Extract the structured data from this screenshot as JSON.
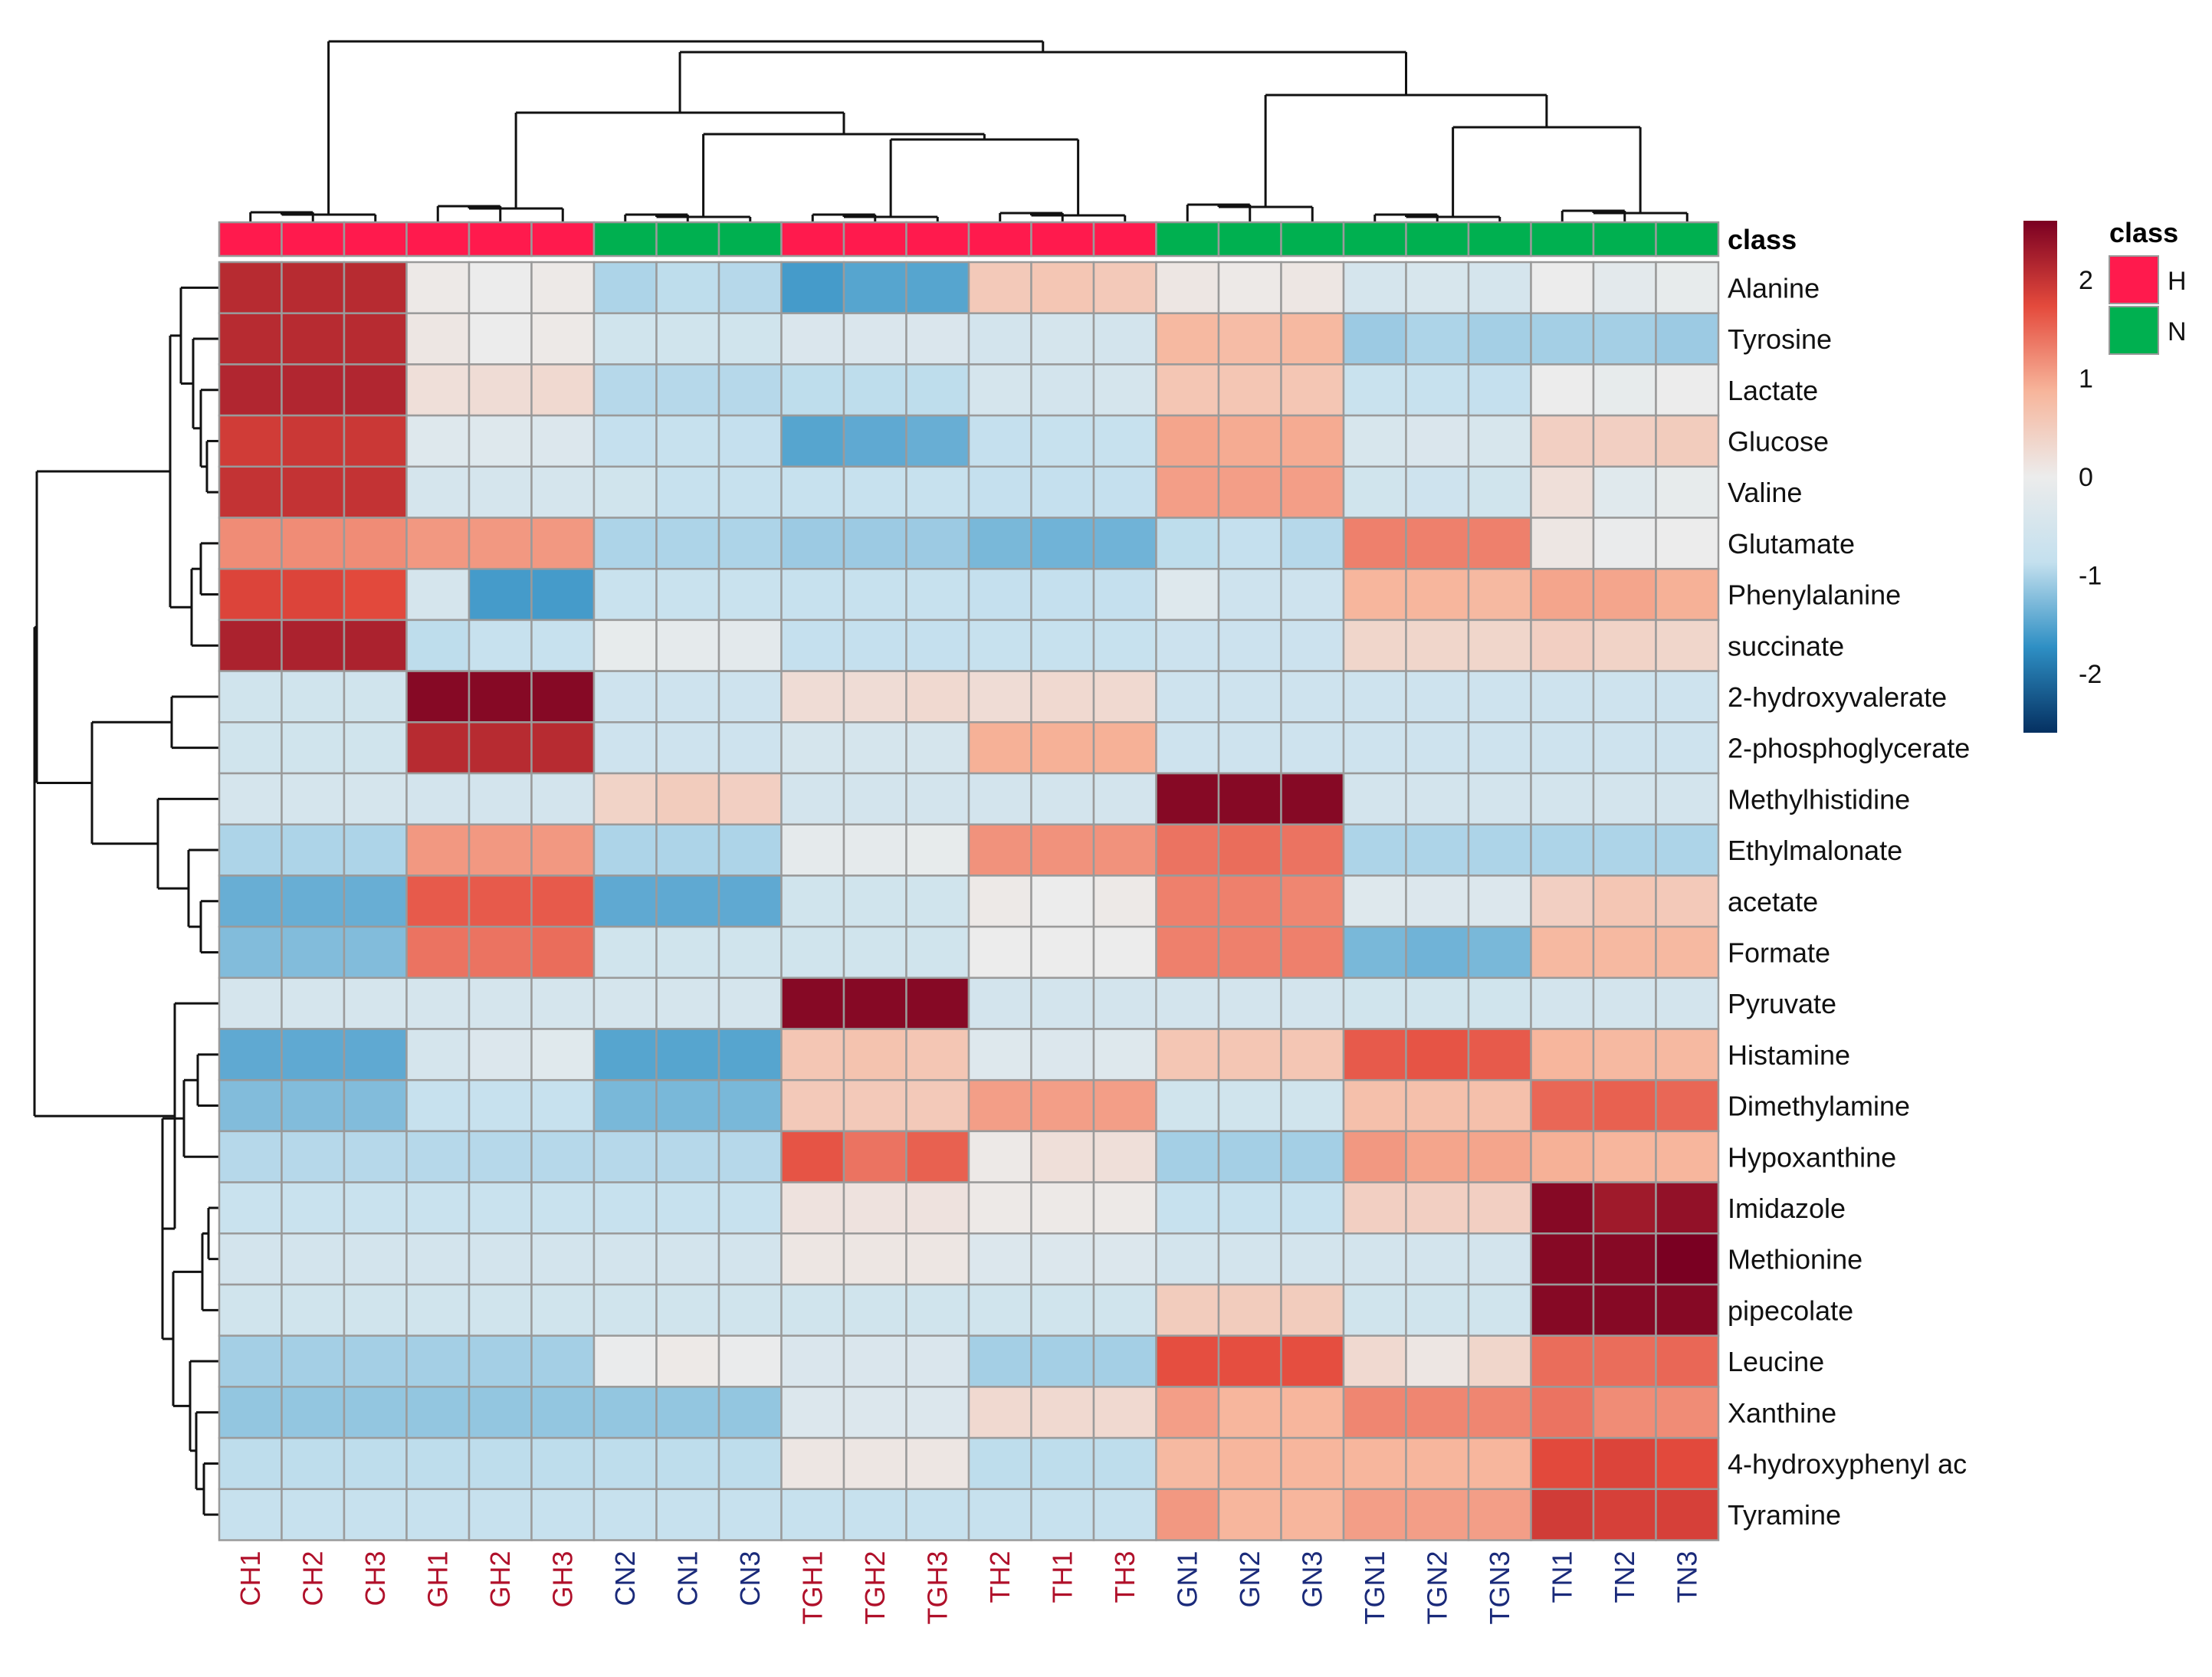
{
  "chart_data": {
    "type": "heatmap",
    "title": "",
    "color_scale": {
      "min": -2.6,
      "max": 2.6,
      "ticks": [
        2,
        1,
        0,
        -1,
        -2
      ],
      "stops": [
        "#053061",
        "#2e8fc4",
        "#c4e0ee",
        "#ececec",
        "#f7b59b",
        "#e44a3c",
        "#7a0022"
      ]
    },
    "class_annotation": {
      "title": "class",
      "legend_title": "class",
      "classes": [
        {
          "label": "H",
          "color": "#ff1a4d"
        },
        {
          "label": "N",
          "color": "#00b050"
        }
      ],
      "per_column": [
        "H",
        "H",
        "H",
        "H",
        "H",
        "H",
        "N",
        "N",
        "N",
        "H",
        "H",
        "H",
        "H",
        "H",
        "H",
        "N",
        "N",
        "N",
        "N",
        "N",
        "N",
        "N",
        "N",
        "N"
      ]
    },
    "columns": [
      "CH1",
      "CH2",
      "CH3",
      "GH1",
      "GH2",
      "GH3",
      "CN2",
      "CN1",
      "CN3",
      "TGH1",
      "TGH2",
      "TGH3",
      "TH2",
      "TH1",
      "TH3",
      "GN1",
      "GN2",
      "GN3",
      "TGN1",
      "TGN2",
      "TGN3",
      "TN1",
      "TN2",
      "TN3"
    ],
    "rows": [
      "Alanine",
      "Tyrosine",
      "Lactate",
      "Glucose",
      "Valine",
      "Glutamate",
      "Phenylalanine",
      "succinate",
      "2-hydroxyvalerate",
      "2-phosphoglycerate",
      "Methylhistidine",
      "Ethylmalonate",
      "acetate",
      "Formate",
      "Pyruvate",
      "Histamine",
      "Dimethylamine",
      "Hypoxanthine",
      "Imidazole",
      "Methionine",
      "pipecolate",
      "Leucine",
      "Xanthine",
      "4-hydroxyphenyl ac",
      "Tyramine"
    ],
    "values": [
      [
        2.1,
        2.1,
        2.1,
        0.05,
        0.0,
        0.05,
        -1.0,
        -0.9,
        -0.95,
        -1.6,
        -1.5,
        -1.5,
        0.55,
        0.6,
        0.55,
        0.1,
        0.05,
        0.1,
        -0.5,
        -0.45,
        -0.5,
        0.0,
        -0.2,
        -0.1
      ],
      [
        2.1,
        2.1,
        2.1,
        0.1,
        0.0,
        0.05,
        -0.6,
        -0.6,
        -0.6,
        -0.4,
        -0.4,
        -0.4,
        -0.55,
        -0.5,
        -0.55,
        0.8,
        0.75,
        0.8,
        -1.1,
        -1.0,
        -1.05,
        -1.05,
        -1.05,
        -1.1
      ],
      [
        2.15,
        2.15,
        2.15,
        0.2,
        0.25,
        0.3,
        -0.95,
        -0.95,
        -0.95,
        -0.9,
        -0.9,
        -0.9,
        -0.5,
        -0.55,
        -0.5,
        0.6,
        0.6,
        0.6,
        -0.75,
        -0.8,
        -0.85,
        0.0,
        -0.1,
        0.0
      ],
      [
        1.9,
        1.95,
        1.95,
        -0.3,
        -0.3,
        -0.35,
        -0.85,
        -0.8,
        -0.85,
        -1.5,
        -1.45,
        -1.4,
        -0.85,
        -0.8,
        -0.8,
        1.0,
        0.95,
        0.95,
        -0.45,
        -0.4,
        -0.45,
        0.45,
        0.45,
        0.5
      ],
      [
        2.0,
        2.0,
        2.0,
        -0.5,
        -0.5,
        -0.5,
        -0.6,
        -0.8,
        -0.8,
        -0.8,
        -0.8,
        -0.8,
        -0.85,
        -0.85,
        -0.85,
        1.05,
        1.05,
        1.05,
        -0.6,
        -0.65,
        -0.6,
        0.2,
        -0.25,
        -0.1
      ],
      [
        1.2,
        1.2,
        1.2,
        1.1,
        1.1,
        1.1,
        -1.0,
        -1.0,
        -1.0,
        -1.1,
        -1.1,
        -1.1,
        -1.3,
        -1.35,
        -1.35,
        -0.9,
        -0.85,
        -0.95,
        1.3,
        1.3,
        1.3,
        0.1,
        -0.05,
        0.0
      ],
      [
        1.8,
        1.8,
        1.75,
        -0.5,
        -1.6,
        -1.6,
        -0.75,
        -0.75,
        -0.75,
        -0.8,
        -0.8,
        -0.8,
        -0.85,
        -0.85,
        -0.85,
        -0.3,
        -0.65,
        -0.65,
        0.85,
        0.85,
        0.8,
        1.0,
        1.0,
        0.9
      ],
      [
        2.2,
        2.2,
        2.2,
        -0.9,
        -0.8,
        -0.8,
        -0.1,
        -0.15,
        -0.2,
        -0.85,
        -0.85,
        -0.85,
        -0.8,
        -0.8,
        -0.8,
        -0.7,
        -0.7,
        -0.7,
        0.35,
        0.35,
        0.35,
        0.45,
        0.4,
        0.35
      ],
      [
        -0.6,
        -0.6,
        -0.6,
        2.5,
        2.5,
        2.5,
        -0.65,
        -0.65,
        -0.65,
        0.25,
        0.25,
        0.3,
        0.25,
        0.3,
        0.3,
        -0.65,
        -0.65,
        -0.65,
        -0.65,
        -0.65,
        -0.65,
        -0.65,
        -0.65,
        -0.65
      ],
      [
        -0.6,
        -0.6,
        -0.6,
        2.1,
        2.1,
        2.1,
        -0.65,
        -0.65,
        -0.65,
        -0.5,
        -0.5,
        -0.5,
        0.9,
        0.9,
        0.9,
        -0.65,
        -0.65,
        -0.65,
        -0.65,
        -0.65,
        -0.65,
        -0.65,
        -0.65,
        -0.65
      ],
      [
        -0.5,
        -0.5,
        -0.5,
        -0.55,
        -0.55,
        -0.55,
        0.4,
        0.5,
        0.45,
        -0.55,
        -0.55,
        -0.55,
        -0.55,
        -0.55,
        -0.55,
        2.5,
        2.5,
        2.5,
        -0.55,
        -0.55,
        -0.55,
        -0.55,
        -0.55,
        -0.55
      ],
      [
        -1.0,
        -1.0,
        -1.0,
        1.1,
        1.1,
        1.1,
        -1.0,
        -1.0,
        -1.0,
        -0.15,
        -0.15,
        -0.1,
        1.15,
        1.15,
        1.15,
        1.4,
        1.45,
        1.4,
        -1.0,
        -1.0,
        -1.0,
        -1.0,
        -1.0,
        -1.0
      ],
      [
        -1.4,
        -1.4,
        -1.4,
        1.6,
        1.6,
        1.6,
        -1.45,
        -1.45,
        -1.45,
        -0.6,
        -0.6,
        -0.6,
        0.05,
        0.0,
        0.05,
        1.3,
        1.3,
        1.25,
        -0.3,
        -0.35,
        -0.35,
        0.45,
        0.6,
        0.55
      ],
      [
        -1.25,
        -1.25,
        -1.25,
        1.4,
        1.4,
        1.45,
        -0.6,
        -0.6,
        -0.6,
        -0.6,
        -0.6,
        -0.6,
        0.0,
        0.0,
        0.0,
        1.3,
        1.3,
        1.3,
        -1.3,
        -1.35,
        -1.3,
        0.8,
        0.8,
        0.8
      ],
      [
        -0.5,
        -0.5,
        -0.5,
        -0.5,
        -0.5,
        -0.5,
        -0.5,
        -0.5,
        -0.5,
        2.5,
        2.5,
        2.5,
        -0.55,
        -0.55,
        -0.55,
        -0.55,
        -0.55,
        -0.55,
        -0.6,
        -0.6,
        -0.6,
        -0.55,
        -0.55,
        -0.55
      ],
      [
        -1.45,
        -1.45,
        -1.45,
        -0.5,
        -0.35,
        -0.25,
        -1.5,
        -1.5,
        -1.5,
        0.6,
        0.65,
        0.6,
        -0.3,
        -0.35,
        -0.3,
        0.6,
        0.6,
        0.6,
        1.6,
        1.65,
        1.6,
        0.85,
        0.8,
        0.8
      ],
      [
        -1.25,
        -1.25,
        -1.25,
        -0.8,
        -0.8,
        -0.8,
        -1.3,
        -1.3,
        -1.3,
        0.55,
        0.55,
        0.55,
        1.05,
        1.05,
        1.05,
        -0.6,
        -0.6,
        -0.6,
        0.7,
        0.7,
        0.7,
        1.5,
        1.55,
        1.5
      ],
      [
        -0.95,
        -0.95,
        -0.95,
        -0.95,
        -0.95,
        -0.95,
        -0.95,
        -0.95,
        -0.95,
        1.65,
        1.4,
        1.55,
        0.05,
        0.2,
        0.2,
        -1.05,
        -1.05,
        -1.05,
        1.1,
        1.0,
        1.0,
        0.9,
        0.85,
        0.85
      ],
      [
        -0.75,
        -0.75,
        -0.75,
        -0.75,
        -0.75,
        -0.75,
        -0.8,
        -0.8,
        -0.8,
        0.15,
        0.15,
        0.15,
        0.05,
        0.05,
        0.05,
        -0.8,
        -0.8,
        -0.8,
        0.45,
        0.45,
        0.45,
        2.5,
        2.3,
        2.4
      ],
      [
        -0.55,
        -0.55,
        -0.55,
        -0.55,
        -0.55,
        -0.55,
        -0.55,
        -0.55,
        -0.55,
        0.1,
        0.1,
        0.1,
        -0.35,
        -0.35,
        -0.35,
        -0.55,
        -0.55,
        -0.55,
        -0.55,
        -0.55,
        -0.55,
        2.5,
        2.5,
        2.6
      ],
      [
        -0.6,
        -0.6,
        -0.6,
        -0.6,
        -0.6,
        -0.6,
        -0.6,
        -0.6,
        -0.6,
        -0.6,
        -0.6,
        -0.6,
        -0.6,
        -0.6,
        -0.6,
        0.5,
        0.5,
        0.5,
        -0.6,
        -0.6,
        -0.6,
        2.5,
        2.5,
        2.5
      ],
      [
        -1.05,
        -1.05,
        -1.05,
        -1.05,
        -1.05,
        -1.05,
        -0.05,
        0.05,
        -0.05,
        -0.4,
        -0.4,
        -0.4,
        -1.05,
        -1.05,
        -1.05,
        1.7,
        1.7,
        1.7,
        0.3,
        0.1,
        0.35,
        1.45,
        1.45,
        1.5
      ],
      [
        -1.15,
        -1.15,
        -1.15,
        -1.15,
        -1.15,
        -1.15,
        -1.15,
        -1.15,
        -1.15,
        -0.35,
        -0.35,
        -0.35,
        0.3,
        0.3,
        0.3,
        1.05,
        0.85,
        0.85,
        1.25,
        1.25,
        1.25,
        1.4,
        1.2,
        1.2
      ],
      [
        -0.9,
        -0.9,
        -0.9,
        -0.9,
        -0.9,
        -0.9,
        -0.9,
        -0.9,
        -0.9,
        0.1,
        0.1,
        0.1,
        -0.9,
        -0.9,
        -0.9,
        0.8,
        0.85,
        0.85,
        0.85,
        0.85,
        0.85,
        1.75,
        1.8,
        1.75
      ],
      [
        -0.8,
        -0.8,
        -0.8,
        -0.8,
        -0.8,
        -0.8,
        -0.8,
        -0.8,
        -0.8,
        -0.8,
        -0.8,
        -0.8,
        -0.8,
        -0.8,
        -0.8,
        1.1,
        0.85,
        0.85,
        1.05,
        1.05,
        1.05,
        1.9,
        1.85,
        1.85
      ]
    ],
    "row_dendrogram": true,
    "column_dendrogram": true
  }
}
